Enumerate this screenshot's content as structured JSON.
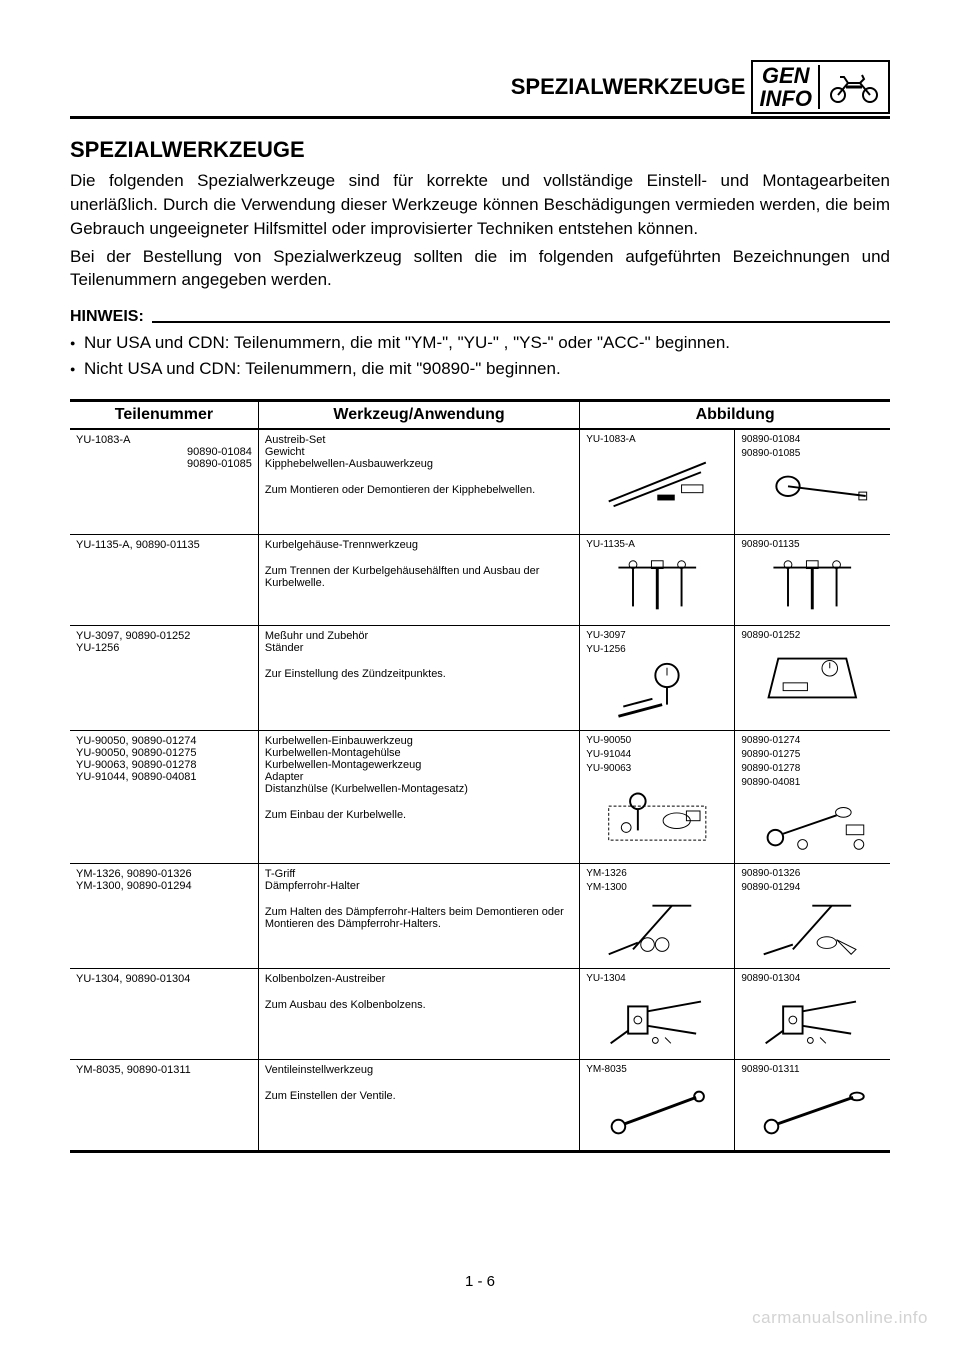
{
  "header": {
    "section": "SPEZIALWERKZEUGE",
    "gen": "GEN",
    "info": "INFO"
  },
  "title": "SPEZIALWERKZEUGE",
  "intro1": "Die folgenden Spezialwerkzeuge sind für korrekte und vollständige Einstell- und Montagearbeiten unerläßlich. Durch die Verwendung dieser Werkzeuge können Beschädigungen vermieden werden, die beim Gebrauch ungeeigneter Hilfsmittel oder improvisierter Techniken entstehen können.",
  "intro2": "Bei der Bestellung von Spezialwerkzeug sollten die im folgenden aufgeführten Bezeichnungen und Teilenummern angegeben werden.",
  "hinweis_label": "HINWEIS:",
  "bullets": [
    "Nur USA und CDN: Teilenummern, die mit \"YM-\", \"YU-\" , \"YS-\" oder \"ACC-\" beginnen.",
    "Nicht USA und CDN: Teilenummern, die mit \"90890-\" beginnen."
  ],
  "table": {
    "headers": [
      "Teilenummer",
      "Werkzeug/Anwendung",
      "Abbildung"
    ],
    "rows": [
      {
        "part_main": "YU-1083-A",
        "part_sub": [
          "90890-01084",
          "90890-01085"
        ],
        "tool_names": [
          "Austreib-Set",
          "Gewicht",
          "Kipphebelwellen-Ausbauwerkzeug"
        ],
        "tool_desc": "Zum Montieren oder Demontieren der Kipphebelwellen.",
        "ill1_labels": [
          "YU-1083-A"
        ],
        "ill2_labels": [
          "90890-01084",
          "90890-01085"
        ]
      },
      {
        "part_main": "YU-1135-A, 90890-01135",
        "part_sub": [],
        "tool_names": [
          "Kurbelgehäuse-Trennwerkzeug"
        ],
        "tool_desc": "Zum Trennen der Kurbelgehäusehälften und Ausbau der Kurbelwelle.",
        "ill1_labels": [
          "YU-1135-A"
        ],
        "ill2_labels": [
          "90890-01135"
        ]
      },
      {
        "part_main": "YU-3097, 90890-01252\nYU-1256",
        "part_sub": [],
        "tool_names": [
          "Meßuhr und Zubehör",
          "Ständer"
        ],
        "tool_desc": "Zur Einstellung des Zündzeitpunktes.",
        "ill1_labels": [
          "YU-3097",
          "YU-1256"
        ],
        "ill2_labels": [
          "90890-01252"
        ]
      },
      {
        "part_main": "\nYU-90050, 90890-01274\nYU-90050, 90890-01275\nYU-90063, 90890-01278\nYU-91044, 90890-04081",
        "part_sub": [],
        "tool_names": [
          "Kurbelwellen-Einbauwerkzeug",
          "Kurbelwellen-Montagehülse",
          "Kurbelwellen-Montagewerkzeug",
          "Adapter",
          "Distanzhülse (Kurbelwellen-Montagesatz)"
        ],
        "tool_desc": "Zum Einbau der Kurbelwelle.",
        "ill1_labels": [
          "YU-90050",
          "YU-91044",
          "YU-90063"
        ],
        "ill2_labels": [
          "90890-01274",
          "90890-01275",
          "90890-01278",
          "90890-04081"
        ]
      },
      {
        "part_main": "YM-1326, 90890-01326\nYM-1300, 90890-01294",
        "part_sub": [],
        "tool_names": [
          "T-Griff",
          "Dämpferrohr-Halter"
        ],
        "tool_desc": "Zum Halten des Dämpferrohr-Halters beim Demontieren oder Montieren des Dämpferrohr-Halters.",
        "ill1_labels": [
          "YM-1326",
          "YM-1300"
        ],
        "ill2_labels": [
          "90890-01326",
          "90890-01294"
        ]
      },
      {
        "part_main": "YU-1304, 90890-01304",
        "part_sub": [],
        "tool_names": [
          "Kolbenbolzen-Austreiber"
        ],
        "tool_desc": "Zum Ausbau des Kolbenbolzens.",
        "ill1_labels": [
          "YU-1304"
        ],
        "ill2_labels": [
          "90890-01304"
        ]
      },
      {
        "part_main": "YM-8035, 90890-01311",
        "part_sub": [],
        "tool_names": [
          "Ventileinstellwerkzeug"
        ],
        "tool_desc": "Zum Einstellen der Ventile.",
        "ill1_labels": [
          "YM-8035"
        ],
        "ill2_labels": [
          "90890-01311"
        ]
      }
    ]
  },
  "page_num": "1 - 6",
  "watermark": "carmanualsonline.info"
}
